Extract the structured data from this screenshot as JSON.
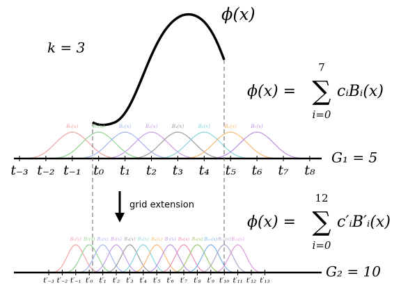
{
  "order_label": "k = 3",
  "curve_label": "ϕ(x)",
  "arrow_label": "grid extension",
  "coarse": {
    "formula": {
      "lhs": "ϕ(x) =",
      "upper": "7",
      "lower": "i=0",
      "summand": "cᵢBᵢ(x)"
    },
    "grid_label": "G₁ = 5",
    "knots": [
      "t₋₃",
      "t₋₂",
      "t₋₁",
      "t₀",
      "t₁",
      "t₂",
      "t₃",
      "t₄",
      "t₅",
      "t₆",
      "t₇",
      "t₈"
    ],
    "basis_labels": [
      "B₀(x)",
      "B₁(x)",
      "B₂(x)",
      "B₃(x)",
      "B₄(x)",
      "B₅(x)",
      "B₆(x)",
      "B₇(x)"
    ]
  },
  "fine": {
    "formula": {
      "lhs": "ϕ(x) =",
      "upper": "12",
      "lower": "i=0",
      "summand": "c′ᵢB′ᵢ(x)"
    },
    "grid_label": "G₂ = 10",
    "knots": [
      "t′₋₃",
      "t′₋₂",
      "t′₋₁",
      "t′₀",
      "t′₁",
      "t′₂",
      "t′₃",
      "t′₄",
      "t′₅",
      "t′₆",
      "t′₇",
      "t′₈",
      "t′₉",
      "t′₁₀",
      "t′₁₁",
      "t′₁₂",
      "t′₁₃"
    ],
    "basis_labels": [
      "B₀(x)",
      "B₁(x)",
      "B₂(x)",
      "B₃(x)",
      "B₄(x)",
      "B₅(x)",
      "B₆(x)",
      "B₇(x)",
      "B₈(x)",
      "B₉(x)",
      "B₁₀(x)",
      "B₁₁(x)",
      "B₁₂(x)"
    ]
  }
}
